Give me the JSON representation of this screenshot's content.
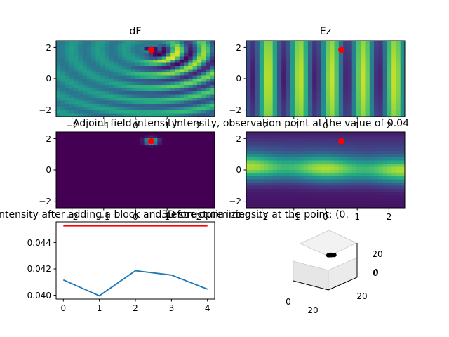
{
  "chart_data": [
    {
      "type": "heatmap",
      "title": "dF",
      "xlim": [
        -2.5,
        2.5
      ],
      "ylim": [
        -2.5,
        2.5
      ],
      "x_ticks": [
        "−2",
        "−1",
        "0",
        "1",
        "2"
      ],
      "y_ticks": [
        "−2",
        "0",
        "2"
      ],
      "colormap": "viridis",
      "pattern": "curved wavefronts radiating from the observation point toward lower-right, dark core at the point",
      "marker": {
        "x": 0.5,
        "y": 1.9,
        "color": "#ff0000"
      }
    },
    {
      "type": "heatmap",
      "title": "Ez",
      "xlim": [
        -2.5,
        2.5
      ],
      "ylim": [
        -2.5,
        2.5
      ],
      "x_ticks": [
        "−2",
        "−1",
        "0",
        "1",
        "2"
      ],
      "y_ticks": [
        "−2",
        "0",
        "2"
      ],
      "colormap": "viridis",
      "pattern": "vertical standing-wave bands",
      "marker": {
        "x": 0.5,
        "y": 1.9,
        "color": "#ff0000"
      }
    },
    {
      "type": "heatmap",
      "title": "Adjoint field intensity",
      "xlim": [
        -2.5,
        2.5
      ],
      "ylim": [
        -2.5,
        2.5
      ],
      "x_ticks": [
        "−2",
        "−1",
        "0",
        "1",
        "2"
      ],
      "y_ticks": [
        "−2",
        "0",
        "2"
      ],
      "colormap": "viridis",
      "pattern": "near-zero everywhere except a bright spot at the observation point",
      "marker": {
        "x": 0.5,
        "y": 1.9,
        "color": "#ff0000"
      }
    },
    {
      "type": "heatmap",
      "title": "Intensity, observation point at the value of 0.04",
      "xlim": [
        -2.5,
        2.5
      ],
      "ylim": [
        -2.5,
        2.5
      ],
      "x_ticks": [
        "−2",
        "−1",
        "0",
        "1",
        "2"
      ],
      "y_ticks": [
        "−2",
        "0",
        "2"
      ],
      "colormap": "viridis",
      "pattern": "bright horizontal band around y=0, dark above and below",
      "marker": {
        "x": 0.5,
        "y": 1.9,
        "color": "#ff0000"
      }
    },
    {
      "type": "line",
      "title": "Intensity after adding a block and before optimizing",
      "x": [
        0,
        1,
        2,
        3,
        4
      ],
      "series": [
        {
          "values": [
            0.04115,
            0.03995,
            0.04185,
            0.04152,
            0.04045
          ],
          "color": "#1f77b4"
        }
      ],
      "reference_line": {
        "y": 0.04525,
        "color": "#ff0000"
      },
      "xlim": [
        -0.2,
        4.2
      ],
      "ylim": [
        0.0397,
        0.04555
      ],
      "x_ticks": [
        "0",
        "1",
        "2",
        "3",
        "4"
      ],
      "y_ticks": [
        "0.040",
        "0.042",
        "0.044"
      ]
    },
    {
      "type": "scatter",
      "title": "3D structure intensity at the point: (0.",
      "projection": "3d",
      "points": [
        [
          4,
          3,
          2
        ],
        [
          5,
          4,
          2
        ],
        [
          6,
          5,
          2
        ],
        [
          7,
          6,
          2
        ],
        [
          6,
          4,
          3
        ],
        [
          5,
          5,
          2
        ],
        [
          8,
          7,
          2
        ],
        [
          6,
          6,
          2
        ]
      ],
      "x_ticks": [
        "0",
        "20"
      ],
      "y_ticks": [
        "20",
        "0"
      ],
      "z_ticks": [
        "20",
        "0"
      ]
    }
  ]
}
